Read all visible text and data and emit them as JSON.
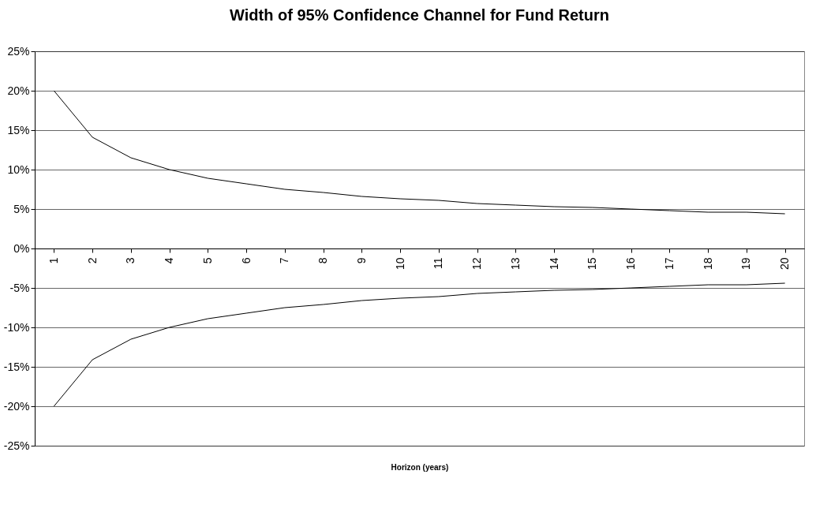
{
  "chart_data": {
    "type": "line",
    "title": "Width of 95% Confidence Channel for Fund Return",
    "xlabel": "Horizon (years)",
    "categories": [
      "1",
      "2",
      "3",
      "4",
      "5",
      "6",
      "7",
      "8",
      "9",
      "10",
      "11",
      "12",
      "13",
      "14",
      "15",
      "16",
      "17",
      "18",
      "19",
      "20"
    ],
    "series": [
      {
        "color": "#000000",
        "values": [
          20,
          14.1,
          11.5,
          10,
          8.9,
          8.2,
          7.5,
          7.1,
          6.6,
          6.3,
          6.1,
          5.7,
          5.5,
          5.3,
          5.2,
          5,
          4.8,
          4.6,
          4.6,
          4.4
        ]
      },
      {
        "color": "#000000",
        "values": [
          -20,
          -14.1,
          -11.5,
          -10,
          -8.9,
          -8.2,
          -7.5,
          -7.1,
          -6.6,
          -6.3,
          -6.1,
          -5.7,
          -5.5,
          -5.3,
          -5.2,
          -5,
          -4.8,
          -4.6,
          -4.6,
          -4.4
        ]
      }
    ],
    "ylim": [
      -25,
      25
    ],
    "yticks": [
      {
        "value": -25,
        "label": "-25%"
      },
      {
        "value": -20,
        "label": "-20%"
      },
      {
        "value": -15,
        "label": "-15%"
      },
      {
        "value": -10,
        "label": "-10%"
      },
      {
        "value": -5,
        "label": "-5%"
      },
      {
        "value": 0,
        "label": "0%"
      },
      {
        "value": 5,
        "label": "5%"
      },
      {
        "value": 10,
        "label": "10%"
      },
      {
        "value": 15,
        "label": "15%"
      },
      {
        "value": 20,
        "label": "20%"
      },
      {
        "value": 25,
        "label": "25%"
      }
    ],
    "grid": "y",
    "marker": "none",
    "line_style": "solid"
  }
}
